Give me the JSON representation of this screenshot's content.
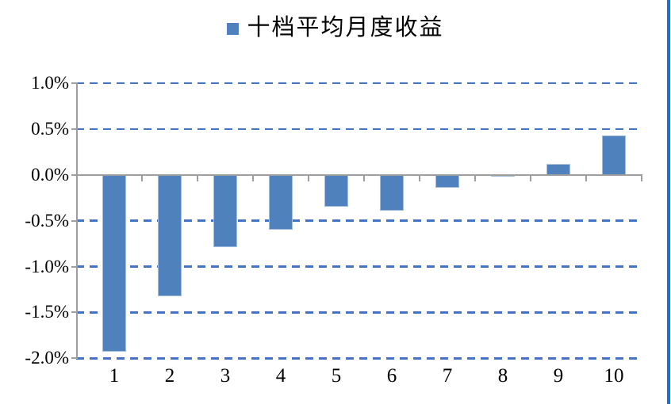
{
  "page": {
    "right_border_color": "#1C70CC"
  },
  "chart_data": {
    "type": "bar",
    "title": "",
    "legend": "十档平均月度收益",
    "legend_position": "top-center",
    "categories": [
      "1",
      "2",
      "3",
      "4",
      "5",
      "6",
      "7",
      "8",
      "9",
      "10"
    ],
    "series": [
      {
        "name": "十档平均月度收益",
        "values": [
          -1.93,
          -1.32,
          -0.79,
          -0.6,
          -0.35,
          -0.39,
          -0.14,
          -0.02,
          0.12,
          0.43
        ]
      }
    ],
    "value_unit": "%",
    "xlabel": "",
    "ylabel": "",
    "ylim": [
      -2.0,
      1.0
    ],
    "yticks": [
      1.0,
      0.5,
      0.0,
      -0.5,
      -1.0,
      -1.5,
      -2.0
    ],
    "ytick_labels": [
      "1.0%",
      "0.5%",
      "0.0%",
      "-0.5%",
      "-1.0%",
      "-1.5%",
      "-2.0%"
    ],
    "grid": "horizontal-dashed",
    "colors": {
      "bar": "#4F81BD",
      "bar_border": "#A3BFDE",
      "gridline": "#4273C4",
      "axis": "#9E9E9E",
      "text": "#000000"
    }
  }
}
